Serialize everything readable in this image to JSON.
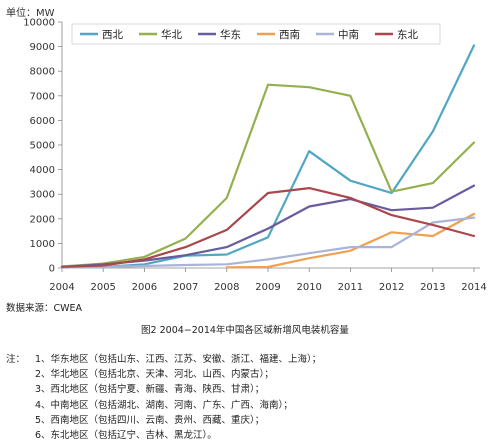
{
  "chart_data": {
    "type": "line",
    "unit_label": "单位：MW",
    "x": [
      "2004",
      "2005",
      "2006",
      "2007",
      "2008",
      "2009",
      "2010",
      "2011",
      "2012",
      "2013",
      "2014"
    ],
    "ylim": [
      0,
      10000
    ],
    "yticks": [
      0,
      1000,
      2000,
      3000,
      4000,
      5000,
      6000,
      7000,
      8000,
      9000,
      10000
    ],
    "grid": false,
    "legend_position": "top",
    "series": [
      {
        "name": "西北",
        "color": "#4fa7c4",
        "values": [
          20,
          40,
          150,
          500,
          550,
          1250,
          4750,
          3550,
          3050,
          5550,
          9050
        ]
      },
      {
        "name": "华北",
        "color": "#94b04e",
        "values": [
          60,
          180,
          450,
          1200,
          2850,
          7450,
          7350,
          7000,
          3100,
          3450,
          5100
        ]
      },
      {
        "name": "华东",
        "color": "#6a5a9e",
        "values": [
          40,
          150,
          300,
          520,
          850,
          1600,
          2500,
          2800,
          2350,
          2450,
          3350
        ]
      },
      {
        "name": "西南",
        "color": "#f0a050",
        "values": [
          null,
          null,
          null,
          null,
          30,
          40,
          400,
          700,
          1450,
          1300,
          2200
        ]
      },
      {
        "name": "中南",
        "color": "#aab3d8",
        "values": [
          20,
          40,
          80,
          120,
          150,
          350,
          600,
          850,
          850,
          1850,
          2050
        ]
      },
      {
        "name": "东北",
        "color": "#a9474c",
        "values": [
          50,
          100,
          350,
          850,
          1550,
          3050,
          3250,
          2850,
          2150,
          1750,
          1300
        ]
      }
    ]
  },
  "source": "数据来源：CWEA",
  "caption": "图2  2004−2014年中国各区域新增风电装机容量",
  "notes": {
    "head": "注：",
    "items": [
      "1、华东地区（包括山东、江西、江苏、安徽、浙江、福建、上海）；",
      "2、华北地区（包括北京、天津、河北、山西、内蒙古）；",
      "3、西北地区（包括宁夏、新疆、青海、陕西、甘肃）；",
      "4、中南地区（包括湖北、湖南、河南、广东、广西、海南）；",
      "5、西南地区（包括四川、云南、贵州、西藏、重庆）；",
      "6、东北地区（包括辽宁、吉林、黑龙江）。"
    ]
  }
}
